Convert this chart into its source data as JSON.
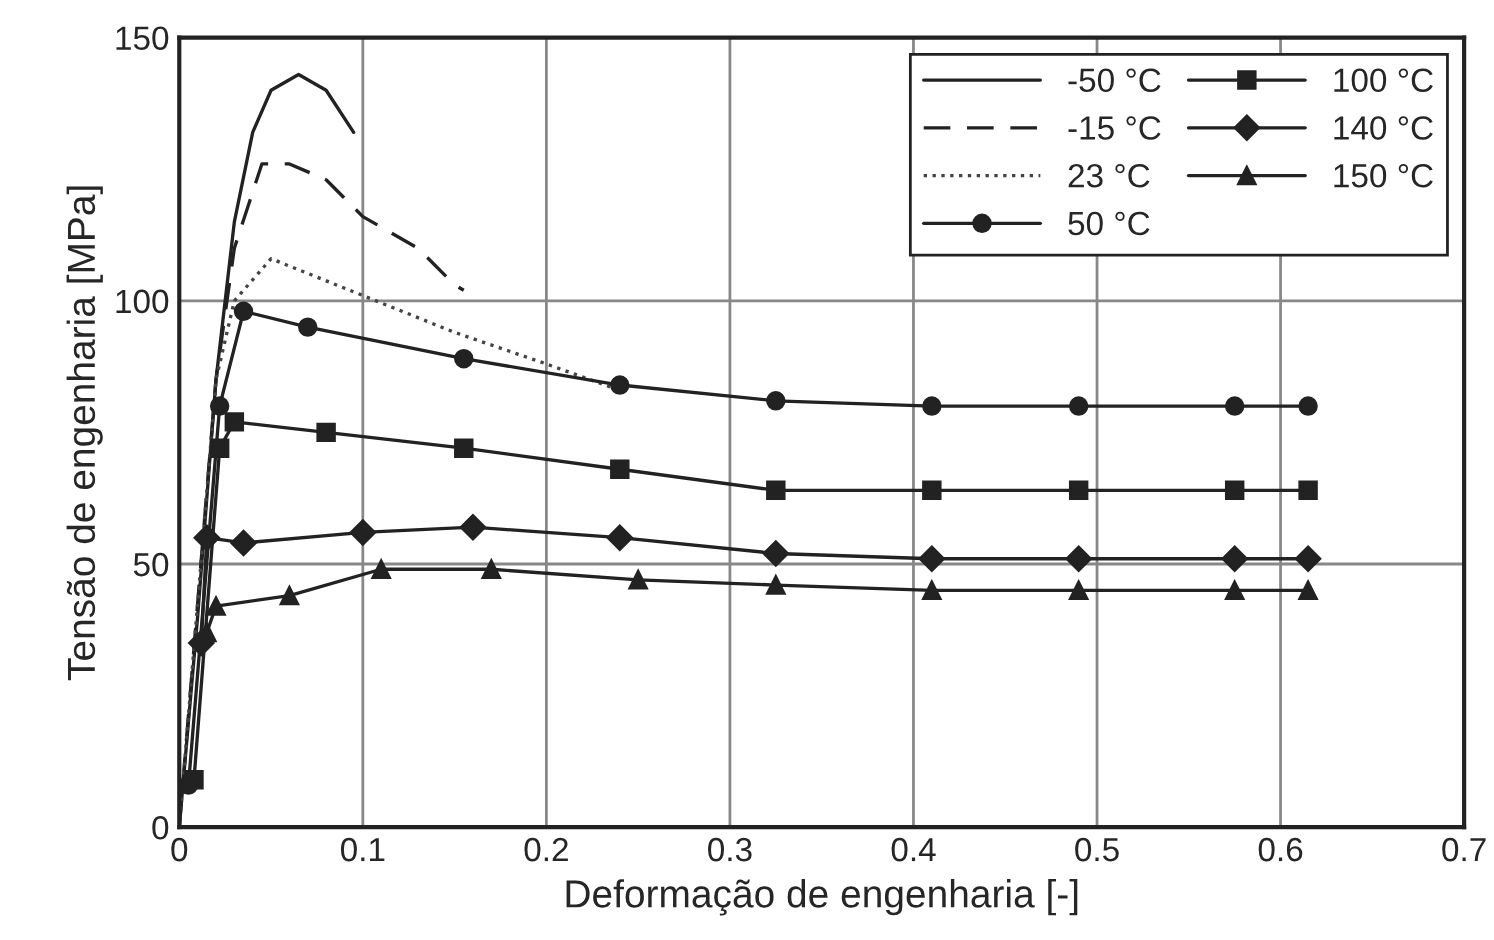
{
  "chart_data": {
    "type": "line",
    "xlabel": "Deformação de engenharia [-]",
    "ylabel": "Tensão de engenharia [MPa]",
    "xlim": [
      0,
      0.7
    ],
    "ylim": [
      0,
      150
    ],
    "xticks": [
      0,
      0.1,
      0.2,
      0.3,
      0.4,
      0.5,
      0.6,
      0.7
    ],
    "yticks": [
      0,
      50,
      100,
      150
    ],
    "grid": true,
    "legend": "top right",
    "series": [
      {
        "name": "-50 °C",
        "color": "#222222",
        "line_style": "solid",
        "marker": "none",
        "x": [
          0,
          0.01,
          0.02,
          0.03,
          0.04,
          0.05,
          0.065,
          0.08,
          0.095
        ],
        "values": [
          0,
          40,
          85,
          115,
          132,
          140,
          143,
          140,
          132
        ]
      },
      {
        "name": "-15 °C",
        "color": "#222222",
        "line_style": "dashed",
        "marker": "none",
        "x": [
          0,
          0.02,
          0.03,
          0.045,
          0.06,
          0.08,
          0.1,
          0.13,
          0.15,
          0.155
        ],
        "values": [
          0,
          85,
          110,
          126,
          126,
          123,
          116,
          110,
          103,
          102
        ]
      },
      {
        "name": "23 °C",
        "color": "#444444",
        "line_style": "dotted",
        "marker": "none",
        "x": [
          0,
          0.02,
          0.03,
          0.05,
          0.1,
          0.15,
          0.2,
          0.24
        ],
        "values": [
          0,
          85,
          100,
          108,
          101,
          94,
          88,
          83
        ]
      },
      {
        "name": "50 °C",
        "color": "#222222",
        "line_style": "solid",
        "marker": "circle",
        "x": [
          0.005,
          0.022,
          0.035,
          0.07,
          0.155,
          0.24,
          0.325,
          0.41,
          0.49,
          0.575,
          0.615
        ],
        "values": [
          8,
          80,
          98,
          95,
          89,
          84,
          81,
          80,
          80,
          80,
          80
        ]
      },
      {
        "name": "100 °C",
        "color": "#222222",
        "line_style": "solid",
        "marker": "square",
        "x": [
          0.008,
          0.022,
          0.03,
          0.08,
          0.155,
          0.24,
          0.325,
          0.41,
          0.49,
          0.575,
          0.615
        ],
        "values": [
          9,
          72,
          77,
          75,
          72,
          68,
          64,
          64,
          64,
          64,
          64
        ]
      },
      {
        "name": "140 °C",
        "color": "#222222",
        "line_style": "solid",
        "marker": "diamond",
        "x": [
          0.012,
          0.015,
          0.035,
          0.1,
          0.16,
          0.24,
          0.325,
          0.41,
          0.49,
          0.575,
          0.615
        ],
        "values": [
          35,
          55,
          54,
          56,
          57,
          55,
          52,
          51,
          51,
          51,
          51
        ]
      },
      {
        "name": "150 °C",
        "color": "#222222",
        "line_style": "solid",
        "marker": "triangle",
        "x": [
          0.015,
          0.02,
          0.06,
          0.11,
          0.17,
          0.25,
          0.325,
          0.41,
          0.49,
          0.575,
          0.615
        ],
        "values": [
          37,
          42,
          44,
          49,
          49,
          47,
          46,
          45,
          45,
          45,
          45
        ]
      }
    ]
  }
}
